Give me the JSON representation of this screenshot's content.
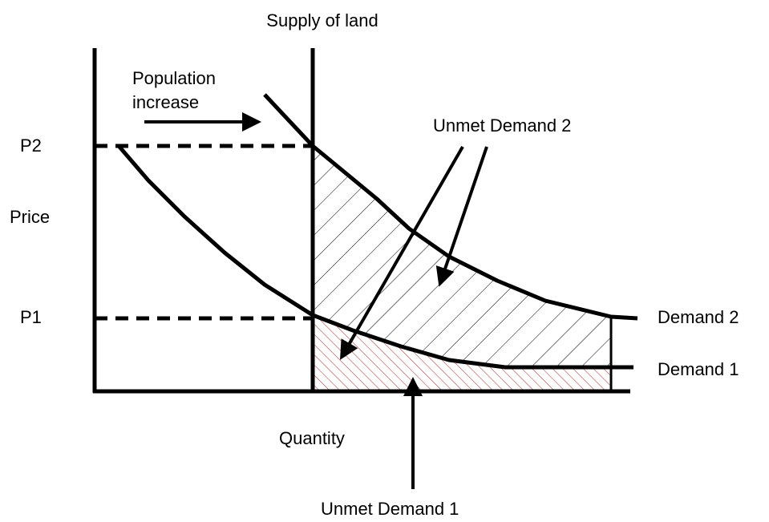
{
  "title": "Supply of land",
  "axes": {
    "y_label": "Price",
    "x_label": "Quantity"
  },
  "price_levels": [
    "P2",
    "P1"
  ],
  "curves": [
    "Demand 2",
    "Demand 1"
  ],
  "annotations": {
    "population_increase": [
      "Population",
      "increase"
    ],
    "unmet_demand_2": "Unmet Demand 2",
    "unmet_demand_1": "Unmet Demand 1"
  }
}
